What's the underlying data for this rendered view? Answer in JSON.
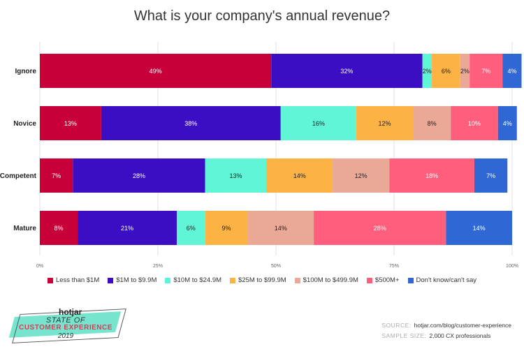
{
  "chart_data": {
    "type": "bar",
    "orientation": "horizontal",
    "stacked": true,
    "title": "What is your company's annual revenue?",
    "categories": [
      "Ignore",
      "Novice",
      "Competent",
      "Mature"
    ],
    "series": [
      {
        "name": "Less than $1M",
        "color": "#c8003a",
        "values": [
          49,
          13,
          7,
          8
        ]
      },
      {
        "name": "$1M to $9.9M",
        "color": "#3b0ec4",
        "values": [
          32,
          38,
          28,
          21
        ]
      },
      {
        "name": "$10M to $24.9M",
        "color": "#5ff5d6",
        "values": [
          2,
          16,
          13,
          6
        ]
      },
      {
        "name": "$25M to $99.9M",
        "color": "#fdb244",
        "values": [
          6,
          12,
          14,
          9
        ]
      },
      {
        "name": "$100M to $499.9M",
        "color": "#e9a996",
        "values": [
          2,
          8,
          12,
          14
        ]
      },
      {
        "name": "$500M+",
        "color": "#ff5f7c",
        "values": [
          7,
          10,
          18,
          28
        ]
      },
      {
        "name": "Don't know/can't say",
        "color": "#2f68d4",
        "values": [
          4,
          4,
          7,
          14
        ]
      }
    ],
    "xlim": [
      0,
      100
    ],
    "xticks": [
      "0%",
      "25%",
      "50%",
      "75%",
      "100%"
    ],
    "grid": true,
    "legend": "bottom"
  },
  "footer": {
    "logo": {
      "brand": "hotjar",
      "line1": "STATE OF",
      "line2": "CUSTOMER EXPERIENCE",
      "line3": "2019"
    },
    "source_label": "SOURCE:",
    "source_value": "hotjar.com/blog/customer-experience",
    "sample_label": "SAMPLE SIZE:",
    "sample_value": "2,000 CX professionals"
  }
}
